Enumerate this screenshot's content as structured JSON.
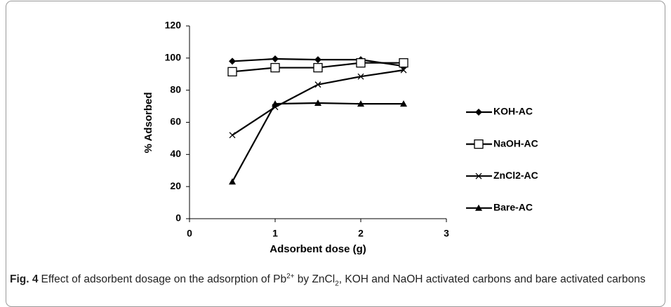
{
  "chart_data": {
    "type": "line",
    "x_label": "Adsorbent dose (g)",
    "y_label": "% Adsorbed",
    "x": [
      0.5,
      1,
      1.5,
      2,
      2.5
    ],
    "xlim": [
      0,
      3
    ],
    "xticks": [
      0,
      1,
      2,
      3
    ],
    "ylim": [
      0,
      120
    ],
    "yticks": [
      0,
      20,
      40,
      60,
      80,
      100,
      120
    ],
    "legend": "right",
    "series": [
      {
        "name": "KOH-AC",
        "color": "#000000",
        "marker": "diamond",
        "values": [
          98,
          99.5,
          99,
          99,
          95
        ]
      },
      {
        "name": "NaOH-AC",
        "color": "#000000",
        "marker": "open-square",
        "values": [
          91.5,
          94,
          94,
          97,
          97
        ]
      },
      {
        "name": "ZnCl2-AC",
        "color": "#000000",
        "marker": "cross",
        "values": [
          52,
          69.5,
          83.5,
          88.5,
          92.5
        ]
      },
      {
        "name": "Bare-AC",
        "color": "#000000",
        "marker": "triangle",
        "values": [
          23,
          71.5,
          72,
          71.5,
          71.5
        ]
      }
    ]
  },
  "caption": {
    "label": "Fig. 4",
    "parts": [
      "Effect of adsorbent dosage on the adsorption of Pb",
      "2+",
      " by ZnCl",
      "2",
      ", KOH and NaOH activated carbons and bare activated carbons"
    ]
  }
}
